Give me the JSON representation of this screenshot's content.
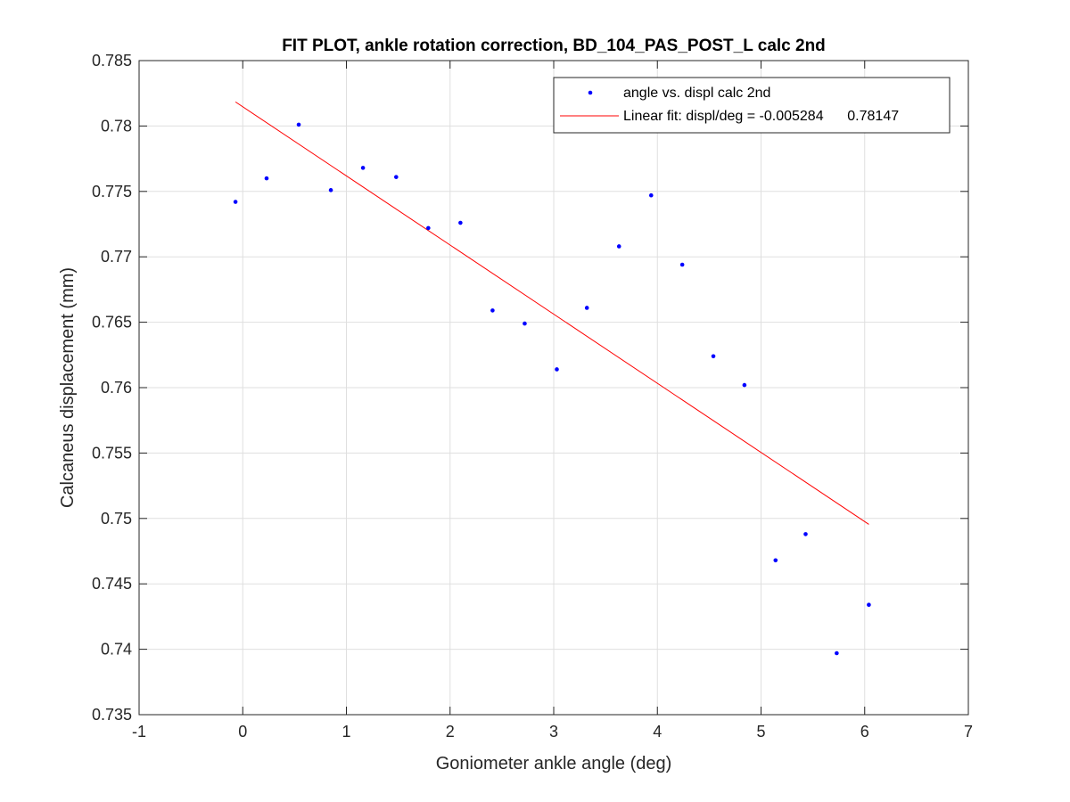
{
  "chart_data": {
    "type": "scatter",
    "title": "FIT PLOT, ankle rotation correction, BD_104_PAS_POST_L calc 2nd",
    "xlabel": "Goniometer ankle angle (deg)",
    "ylabel": "Calcaneus displacement (mm)",
    "xlim": [
      -1,
      7
    ],
    "ylim": [
      0.735,
      0.785
    ],
    "xticks": [
      -1,
      0,
      1,
      2,
      3,
      4,
      5,
      6,
      7
    ],
    "xtick_labels": [
      "-1",
      "0",
      "1",
      "2",
      "3",
      "4",
      "5",
      "6",
      "7"
    ],
    "yticks": [
      0.735,
      0.74,
      0.745,
      0.75,
      0.755,
      0.76,
      0.765,
      0.77,
      0.775,
      0.78,
      0.785
    ],
    "ytick_labels": [
      "0.735",
      "0.74",
      "0.745",
      "0.75",
      "0.755",
      "0.76",
      "0.765",
      "0.77",
      "0.775",
      "0.78",
      "0.785"
    ],
    "grid": true,
    "legend_position": "top-right",
    "series": [
      {
        "name": "angle vs. displ calc 2nd",
        "kind": "points",
        "color": "#0000ff",
        "x": [
          -0.07,
          0.23,
          0.54,
          0.85,
          1.16,
          1.48,
          1.79,
          2.1,
          2.41,
          2.72,
          3.03,
          3.32,
          3.63,
          3.94,
          4.24,
          4.54,
          4.84,
          5.14,
          5.43,
          5.73,
          6.04
        ],
        "y": [
          0.7742,
          0.776,
          0.7801,
          0.7751,
          0.7768,
          0.7761,
          0.7722,
          0.7726,
          0.7659,
          0.7649,
          0.7614,
          0.7661,
          0.7708,
          0.7747,
          0.7694,
          0.7624,
          0.7602,
          0.7468,
          0.7488,
          0.7397,
          0.7434
        ]
      },
      {
        "name": "Linear fit: displ/deg = -0.005284      0.78147",
        "kind": "line",
        "color": "#ff0000",
        "x": [
          -0.07,
          6.04
        ],
        "y": [
          0.78184,
          0.74955
        ]
      }
    ]
  }
}
